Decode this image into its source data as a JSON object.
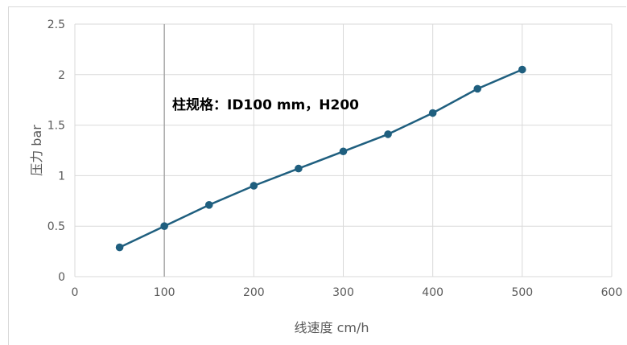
{
  "chart_data": {
    "type": "line",
    "title": "",
    "xlabel": "线速度 cm/h",
    "ylabel": "压力 bar",
    "xlim": [
      0,
      600
    ],
    "ylim": [
      0,
      2.5
    ],
    "x_ticks": [
      "0",
      "100",
      "200",
      "300",
      "400",
      "500",
      "600"
    ],
    "y_ticks": [
      "0",
      "0.5",
      "1",
      "1.5",
      "2",
      "2.5"
    ],
    "x_tick_values": [
      0,
      100,
      200,
      300,
      400,
      500,
      600
    ],
    "y_tick_values": [
      0,
      0.5,
      1,
      1.5,
      2,
      2.5
    ],
    "grid": true,
    "legend": "none",
    "annotation": "柱规格：ID100 mm，H200",
    "series": [
      {
        "color": "#1f5f7f",
        "x": [
          50,
          100,
          150,
          200,
          250,
          300,
          350,
          400,
          450,
          500
        ],
        "y": [
          0.29,
          0.5,
          0.71,
          0.9,
          1.07,
          1.24,
          1.41,
          1.62,
          1.86,
          2.05
        ]
      }
    ]
  }
}
